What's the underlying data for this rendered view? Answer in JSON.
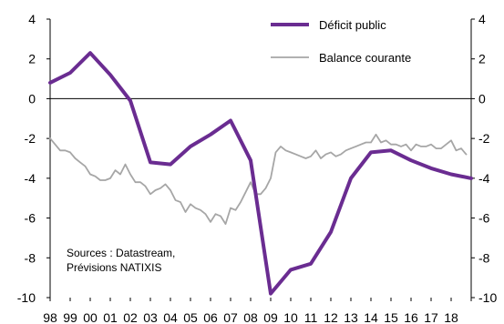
{
  "chart_data": {
    "type": "line",
    "categories": [
      "98",
      "99",
      "00",
      "01",
      "02",
      "03",
      "04",
      "05",
      "06",
      "07",
      "08",
      "09",
      "10",
      "11",
      "12",
      "13",
      "14",
      "15",
      "16",
      "17",
      "18"
    ],
    "ylim": [
      -10,
      4
    ],
    "y_ticks": [
      "4",
      "2",
      "0",
      "-2",
      "-4",
      "-6",
      "-8",
      "-10"
    ],
    "grid": false,
    "legend": "top-right",
    "series": [
      {
        "name": "Déficit public",
        "color": "#6a2c91",
        "x": [
          1998,
          1999,
          2000,
          2001,
          2002,
          2003,
          2004,
          2005,
          2006,
          2007,
          2008,
          2009,
          2010,
          2011,
          2012,
          2013,
          2014,
          2015,
          2016,
          2017,
          2018,
          2019
        ],
        "values": [
          0.8,
          1.3,
          2.3,
          1.2,
          -0.1,
          -3.2,
          -3.3,
          -2.4,
          -1.8,
          -1.1,
          -3.1,
          -9.8,
          -8.6,
          -8.3,
          -6.7,
          -4.0,
          -2.7,
          -2.6,
          -3.1,
          -3.5,
          -3.8,
          -4.0
        ]
      },
      {
        "name": "Balance courante",
        "color": "#a6a6a6",
        "x": [
          1998.0,
          1998.25,
          1998.5,
          1998.75,
          1999.0,
          1999.25,
          1999.5,
          1999.75,
          2000.0,
          2000.25,
          2000.5,
          2000.75,
          2001.0,
          2001.25,
          2001.5,
          2001.75,
          2002.0,
          2002.25,
          2002.5,
          2002.75,
          2003.0,
          2003.25,
          2003.5,
          2003.75,
          2004.0,
          2004.25,
          2004.5,
          2004.75,
          2005.0,
          2005.25,
          2005.5,
          2005.75,
          2006.0,
          2006.25,
          2006.5,
          2006.75,
          2007.0,
          2007.25,
          2007.5,
          2007.75,
          2008.0,
          2008.25,
          2008.5,
          2008.75,
          2009.0,
          2009.25,
          2009.5,
          2009.75,
          2010.0,
          2010.25,
          2010.5,
          2010.75,
          2011.0,
          2011.25,
          2011.5,
          2011.75,
          2012.0,
          2012.25,
          2012.5,
          2012.75,
          2013.0,
          2013.25,
          2013.5,
          2013.75,
          2014.0,
          2014.25,
          2014.5,
          2014.75,
          2015.0,
          2015.25,
          2015.5,
          2015.75,
          2016.0,
          2016.25,
          2016.5,
          2016.75,
          2017.0,
          2017.25,
          2017.5,
          2017.75,
          2018.0,
          2018.25,
          2018.5,
          2018.75
        ],
        "values": [
          -2.0,
          -2.3,
          -2.6,
          -2.6,
          -2.7,
          -3.0,
          -3.2,
          -3.4,
          -3.8,
          -3.9,
          -4.1,
          -4.1,
          -4.0,
          -3.6,
          -3.8,
          -3.3,
          -3.8,
          -4.2,
          -4.2,
          -4.4,
          -4.8,
          -4.6,
          -4.5,
          -4.3,
          -4.6,
          -5.1,
          -5.2,
          -5.7,
          -5.3,
          -5.5,
          -5.6,
          -5.8,
          -6.2,
          -5.8,
          -5.9,
          -6.3,
          -5.5,
          -5.6,
          -5.2,
          -4.7,
          -4.2,
          -4.8,
          -4.8,
          -4.5,
          -4.0,
          -2.7,
          -2.4,
          -2.6,
          -2.7,
          -2.8,
          -2.9,
          -3.0,
          -2.9,
          -2.6,
          -3.0,
          -2.8,
          -2.7,
          -2.9,
          -2.8,
          -2.6,
          -2.5,
          -2.4,
          -2.3,
          -2.2,
          -2.2,
          -1.8,
          -2.2,
          -2.1,
          -2.3,
          -2.3,
          -2.4,
          -2.3,
          -2.6,
          -2.3,
          -2.4,
          -2.4,
          -2.3,
          -2.5,
          -2.5,
          -2.3,
          -2.1,
          -2.6,
          -2.5,
          -2.8
        ]
      }
    ],
    "annotation": [
      "Sources : Datastream,",
      "Prévisions NATIXIS"
    ]
  }
}
